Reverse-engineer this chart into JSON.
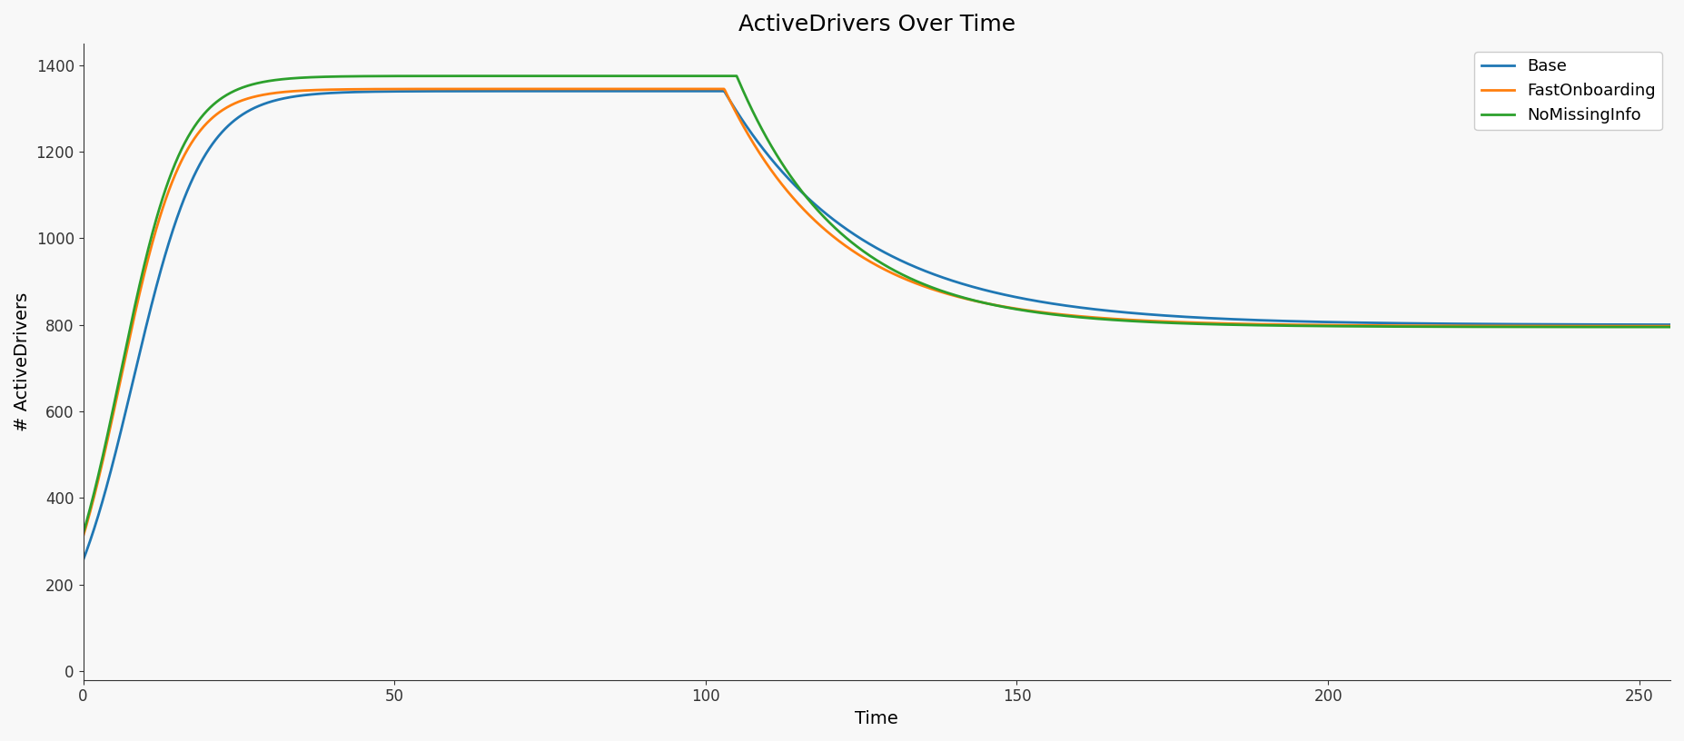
{
  "title": "ActiveDrivers Over Time",
  "xlabel": "Time",
  "ylabel": "# ActiveDrivers",
  "xlim": [
    0,
    255
  ],
  "ylim": [
    -20,
    1450
  ],
  "series": [
    {
      "label": "Base",
      "color": "#1f77b4"
    },
    {
      "label": "FastOnboarding",
      "color": "#ff7f0e"
    },
    {
      "label": "NoMissingInfo",
      "color": "#2ca02c"
    }
  ],
  "legend_loc": "upper right",
  "figsize": [
    18.54,
    8.16
  ],
  "dpi": 100,
  "linewidth": 2.0,
  "background_color": "#f8f8f8",
  "axes_background": "#f8f8f8"
}
